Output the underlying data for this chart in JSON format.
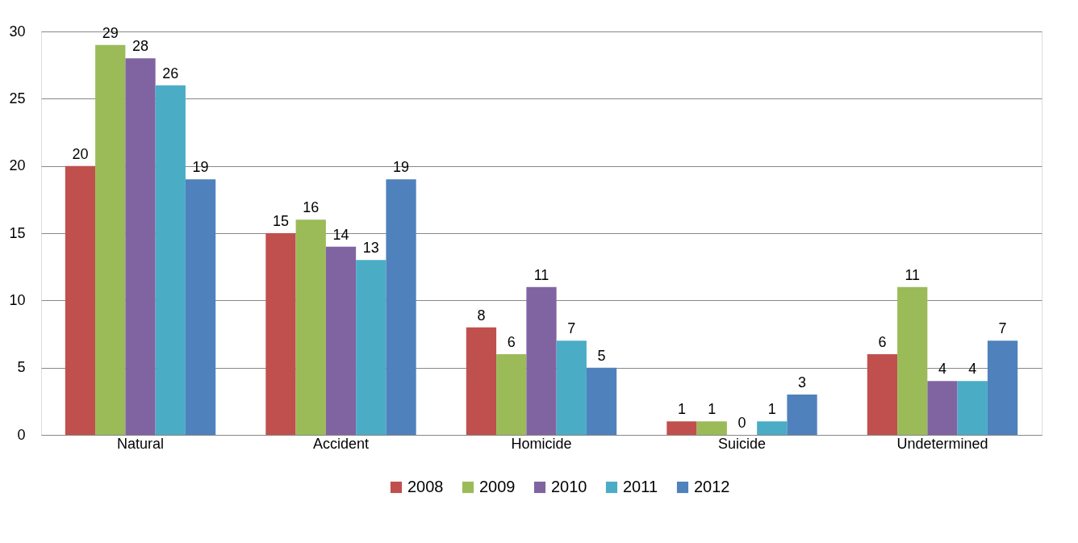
{
  "chart_data": {
    "type": "bar",
    "categories": [
      "Natural",
      "Accident",
      "Homicide",
      "Suicide",
      "Undetermined"
    ],
    "series": [
      {
        "name": "2008",
        "color": "#c0504d",
        "values": [
          20,
          15,
          8,
          1,
          6
        ]
      },
      {
        "name": "2009",
        "color": "#9bbb59",
        "values": [
          29,
          16,
          6,
          1,
          11
        ]
      },
      {
        "name": "2010",
        "color": "#8064a2",
        "values": [
          28,
          14,
          11,
          0,
          4
        ]
      },
      {
        "name": "2011",
        "color": "#4bacc6",
        "values": [
          26,
          13,
          7,
          1,
          4
        ]
      },
      {
        "name": "2012",
        "color": "#4f81bd",
        "values": [
          19,
          19,
          5,
          3,
          7
        ]
      }
    ],
    "ylim": [
      0,
      30
    ],
    "yticks": [
      0,
      5,
      10,
      15,
      20,
      25,
      30
    ],
    "grid": "y",
    "legend": "bottom",
    "data_labels": true
  }
}
